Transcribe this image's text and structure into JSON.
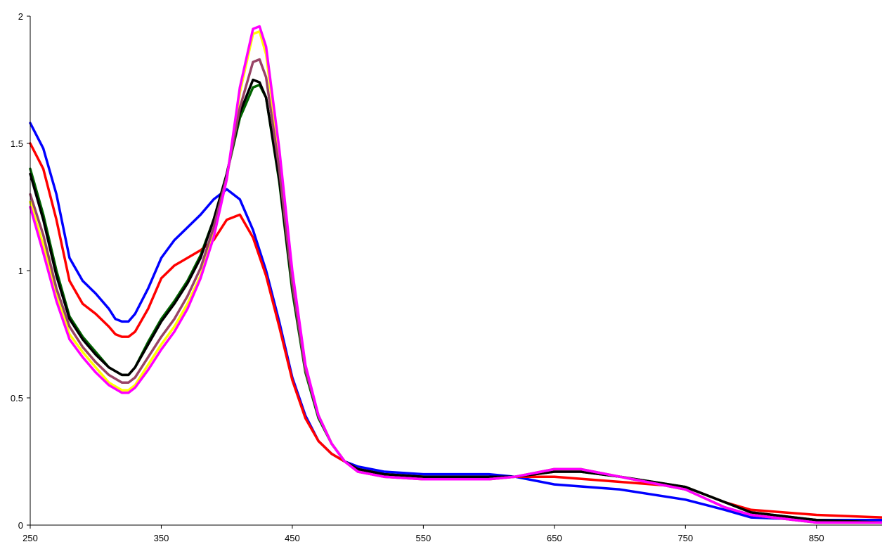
{
  "chart_data": {
    "type": "line",
    "title": "",
    "xlabel": "",
    "ylabel": "",
    "xlim": [
      250,
      900
    ],
    "ylim": [
      0,
      2
    ],
    "x_ticks": [
      250,
      350,
      450,
      550,
      650,
      750,
      850
    ],
    "x_tick_labels": [
      "250",
      "350",
      "450",
      "550",
      "650",
      "750",
      "850"
    ],
    "y_ticks": [
      0,
      0.5,
      1,
      1.5,
      2
    ],
    "y_tick_labels": [
      "0",
      "0.5",
      "1",
      "1.5",
      "2"
    ],
    "grid": false,
    "legend": "none",
    "series": [
      {
        "color": "#0000ff",
        "points": [
          [
            250,
            1.58
          ],
          [
            260,
            1.48
          ],
          [
            270,
            1.3
          ],
          [
            280,
            1.05
          ],
          [
            290,
            0.96
          ],
          [
            300,
            0.91
          ],
          [
            310,
            0.85
          ],
          [
            315,
            0.81
          ],
          [
            320,
            0.8
          ],
          [
            325,
            0.8
          ],
          [
            330,
            0.83
          ],
          [
            340,
            0.93
          ],
          [
            350,
            1.05
          ],
          [
            360,
            1.12
          ],
          [
            370,
            1.17
          ],
          [
            380,
            1.22
          ],
          [
            390,
            1.28
          ],
          [
            400,
            1.32
          ],
          [
            410,
            1.28
          ],
          [
            420,
            1.16
          ],
          [
            430,
            1.0
          ],
          [
            440,
            0.8
          ],
          [
            450,
            0.58
          ],
          [
            460,
            0.43
          ],
          [
            470,
            0.33
          ],
          [
            480,
            0.28
          ],
          [
            490,
            0.25
          ],
          [
            500,
            0.23
          ],
          [
            520,
            0.21
          ],
          [
            550,
            0.2
          ],
          [
            600,
            0.2
          ],
          [
            620,
            0.19
          ],
          [
            650,
            0.16
          ],
          [
            700,
            0.14
          ],
          [
            750,
            0.1
          ],
          [
            780,
            0.06
          ],
          [
            800,
            0.03
          ],
          [
            850,
            0.02
          ],
          [
            900,
            0.02
          ]
        ]
      },
      {
        "color": "#ff0000",
        "points": [
          [
            250,
            1.5
          ],
          [
            260,
            1.4
          ],
          [
            270,
            1.2
          ],
          [
            280,
            0.96
          ],
          [
            290,
            0.87
          ],
          [
            300,
            0.83
          ],
          [
            310,
            0.78
          ],
          [
            315,
            0.75
          ],
          [
            320,
            0.74
          ],
          [
            325,
            0.74
          ],
          [
            330,
            0.76
          ],
          [
            340,
            0.85
          ],
          [
            350,
            0.97
          ],
          [
            360,
            1.02
          ],
          [
            370,
            1.05
          ],
          [
            380,
            1.08
          ],
          [
            390,
            1.12
          ],
          [
            400,
            1.2
          ],
          [
            410,
            1.22
          ],
          [
            420,
            1.13
          ],
          [
            430,
            0.98
          ],
          [
            440,
            0.78
          ],
          [
            450,
            0.57
          ],
          [
            460,
            0.42
          ],
          [
            470,
            0.33
          ],
          [
            480,
            0.28
          ],
          [
            490,
            0.25
          ],
          [
            500,
            0.22
          ],
          [
            520,
            0.2
          ],
          [
            550,
            0.19
          ],
          [
            600,
            0.19
          ],
          [
            650,
            0.19
          ],
          [
            700,
            0.17
          ],
          [
            750,
            0.15
          ],
          [
            780,
            0.09
          ],
          [
            800,
            0.06
          ],
          [
            850,
            0.04
          ],
          [
            900,
            0.03
          ]
        ]
      },
      {
        "color": "#006400",
        "points": [
          [
            250,
            1.4
          ],
          [
            260,
            1.22
          ],
          [
            270,
            1.0
          ],
          [
            280,
            0.82
          ],
          [
            290,
            0.74
          ],
          [
            300,
            0.68
          ],
          [
            310,
            0.62
          ],
          [
            320,
            0.59
          ],
          [
            325,
            0.59
          ],
          [
            330,
            0.62
          ],
          [
            340,
            0.72
          ],
          [
            350,
            0.81
          ],
          [
            360,
            0.88
          ],
          [
            370,
            0.96
          ],
          [
            380,
            1.06
          ],
          [
            390,
            1.2
          ],
          [
            400,
            1.38
          ],
          [
            410,
            1.6
          ],
          [
            420,
            1.72
          ],
          [
            425,
            1.73
          ],
          [
            430,
            1.68
          ],
          [
            440,
            1.35
          ],
          [
            450,
            0.92
          ],
          [
            460,
            0.6
          ],
          [
            470,
            0.42
          ],
          [
            480,
            0.32
          ],
          [
            490,
            0.25
          ],
          [
            500,
            0.22
          ],
          [
            520,
            0.2
          ],
          [
            550,
            0.19
          ],
          [
            600,
            0.19
          ],
          [
            620,
            0.19
          ],
          [
            650,
            0.21
          ],
          [
            670,
            0.21
          ],
          [
            700,
            0.19
          ],
          [
            750,
            0.15
          ],
          [
            780,
            0.09
          ],
          [
            800,
            0.05
          ],
          [
            850,
            0.02
          ],
          [
            900,
            0.01
          ]
        ]
      },
      {
        "color": "#000000",
        "points": [
          [
            250,
            1.38
          ],
          [
            260,
            1.2
          ],
          [
            270,
            0.98
          ],
          [
            280,
            0.81
          ],
          [
            290,
            0.73
          ],
          [
            300,
            0.67
          ],
          [
            310,
            0.62
          ],
          [
            320,
            0.59
          ],
          [
            325,
            0.59
          ],
          [
            330,
            0.62
          ],
          [
            340,
            0.71
          ],
          [
            350,
            0.8
          ],
          [
            360,
            0.87
          ],
          [
            370,
            0.95
          ],
          [
            380,
            1.05
          ],
          [
            390,
            1.2
          ],
          [
            400,
            1.38
          ],
          [
            410,
            1.62
          ],
          [
            420,
            1.75
          ],
          [
            425,
            1.74
          ],
          [
            430,
            1.68
          ],
          [
            440,
            1.36
          ],
          [
            450,
            0.94
          ],
          [
            460,
            0.61
          ],
          [
            470,
            0.43
          ],
          [
            480,
            0.32
          ],
          [
            490,
            0.25
          ],
          [
            500,
            0.22
          ],
          [
            520,
            0.2
          ],
          [
            550,
            0.19
          ],
          [
            600,
            0.19
          ],
          [
            620,
            0.19
          ],
          [
            650,
            0.21
          ],
          [
            670,
            0.21
          ],
          [
            700,
            0.19
          ],
          [
            750,
            0.15
          ],
          [
            780,
            0.09
          ],
          [
            800,
            0.05
          ],
          [
            850,
            0.02
          ],
          [
            900,
            0.01
          ]
        ]
      },
      {
        "color": "#ffff00",
        "points": [
          [
            250,
            1.27
          ],
          [
            260,
            1.1
          ],
          [
            270,
            0.9
          ],
          [
            280,
            0.75
          ],
          [
            290,
            0.68
          ],
          [
            300,
            0.62
          ],
          [
            310,
            0.56
          ],
          [
            320,
            0.53
          ],
          [
            325,
            0.53
          ],
          [
            330,
            0.55
          ],
          [
            340,
            0.63
          ],
          [
            350,
            0.71
          ],
          [
            360,
            0.78
          ],
          [
            370,
            0.87
          ],
          [
            380,
            0.98
          ],
          [
            390,
            1.14
          ],
          [
            400,
            1.36
          ],
          [
            410,
            1.7
          ],
          [
            420,
            1.93
          ],
          [
            425,
            1.94
          ],
          [
            430,
            1.85
          ],
          [
            440,
            1.45
          ],
          [
            450,
            0.98
          ],
          [
            460,
            0.62
          ],
          [
            470,
            0.43
          ],
          [
            480,
            0.32
          ],
          [
            490,
            0.25
          ],
          [
            500,
            0.21
          ],
          [
            520,
            0.19
          ],
          [
            550,
            0.18
          ],
          [
            600,
            0.18
          ],
          [
            620,
            0.19
          ],
          [
            650,
            0.22
          ],
          [
            670,
            0.22
          ],
          [
            700,
            0.19
          ],
          [
            750,
            0.14
          ],
          [
            780,
            0.07
          ],
          [
            800,
            0.04
          ],
          [
            850,
            0.01
          ],
          [
            900,
            0.01
          ]
        ]
      },
      {
        "color": "#994466",
        "points": [
          [
            250,
            1.3
          ],
          [
            260,
            1.14
          ],
          [
            270,
            0.93
          ],
          [
            280,
            0.78
          ],
          [
            290,
            0.7
          ],
          [
            300,
            0.64
          ],
          [
            310,
            0.59
          ],
          [
            320,
            0.56
          ],
          [
            325,
            0.56
          ],
          [
            330,
            0.58
          ],
          [
            340,
            0.66
          ],
          [
            350,
            0.74
          ],
          [
            360,
            0.81
          ],
          [
            370,
            0.9
          ],
          [
            380,
            1.01
          ],
          [
            390,
            1.17
          ],
          [
            400,
            1.37
          ],
          [
            410,
            1.64
          ],
          [
            420,
            1.82
          ],
          [
            425,
            1.83
          ],
          [
            430,
            1.76
          ],
          [
            440,
            1.4
          ],
          [
            450,
            0.95
          ],
          [
            460,
            0.61
          ],
          [
            470,
            0.43
          ],
          [
            480,
            0.32
          ],
          [
            490,
            0.25
          ],
          [
            500,
            0.21
          ],
          [
            520,
            0.19
          ],
          [
            550,
            0.18
          ],
          [
            600,
            0.18
          ],
          [
            620,
            0.19
          ],
          [
            650,
            0.22
          ],
          [
            670,
            0.22
          ],
          [
            700,
            0.19
          ],
          [
            750,
            0.14
          ],
          [
            780,
            0.07
          ],
          [
            800,
            0.04
          ],
          [
            850,
            0.01
          ],
          [
            900,
            0.01
          ]
        ]
      },
      {
        "color": "#ff00ff",
        "points": [
          [
            250,
            1.25
          ],
          [
            260,
            1.07
          ],
          [
            270,
            0.88
          ],
          [
            280,
            0.73
          ],
          [
            290,
            0.66
          ],
          [
            300,
            0.6
          ],
          [
            310,
            0.55
          ],
          [
            320,
            0.52
          ],
          [
            325,
            0.52
          ],
          [
            330,
            0.54
          ],
          [
            340,
            0.61
          ],
          [
            350,
            0.69
          ],
          [
            360,
            0.76
          ],
          [
            370,
            0.85
          ],
          [
            380,
            0.97
          ],
          [
            390,
            1.13
          ],
          [
            400,
            1.36
          ],
          [
            410,
            1.72
          ],
          [
            420,
            1.95
          ],
          [
            425,
            1.96
          ],
          [
            430,
            1.88
          ],
          [
            440,
            1.48
          ],
          [
            450,
            1.0
          ],
          [
            460,
            0.63
          ],
          [
            470,
            0.43
          ],
          [
            480,
            0.32
          ],
          [
            490,
            0.25
          ],
          [
            500,
            0.21
          ],
          [
            520,
            0.19
          ],
          [
            550,
            0.18
          ],
          [
            600,
            0.18
          ],
          [
            620,
            0.19
          ],
          [
            650,
            0.22
          ],
          [
            670,
            0.22
          ],
          [
            700,
            0.19
          ],
          [
            750,
            0.14
          ],
          [
            780,
            0.07
          ],
          [
            800,
            0.04
          ],
          [
            850,
            0.01
          ],
          [
            900,
            0.01
          ]
        ]
      }
    ]
  }
}
